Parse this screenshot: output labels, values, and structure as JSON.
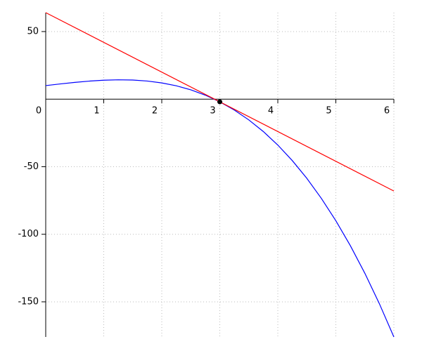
{
  "chart_data": {
    "type": "line",
    "xlim": [
      0,
      6
    ],
    "ylim": [
      -176,
      64
    ],
    "xticks": [
      0,
      1,
      2,
      3,
      4,
      5,
      6
    ],
    "yticks": [
      -150,
      -100,
      -50,
      50
    ],
    "grid": true,
    "series": [
      {
        "color": "#0000ff",
        "x": [
          0,
          0.25,
          0.5,
          0.75,
          1,
          1.25,
          1.5,
          1.75,
          2,
          2.25,
          2.5,
          2.75,
          3,
          3.25,
          3.5,
          3.75,
          4,
          4.25,
          4.5,
          4.75,
          5,
          5.25,
          5.5,
          5.75,
          6
        ],
        "values": [
          10,
          11.234375,
          12.375,
          13.328125,
          14,
          14.296875,
          14.125,
          13.390625,
          12,
          9.859375,
          6.875,
          2.953125,
          -2,
          -8.078125,
          -15.375,
          -23.984375,
          -34,
          -45.515625,
          -58.625,
          -73.421875,
          -90,
          -108.453125,
          -128.875,
          -151.359375,
          -176
        ]
      },
      {
        "color": "#ff0000",
        "x": [
          0,
          6
        ],
        "values": [
          64,
          -68
        ]
      },
      {
        "color": "#000000",
        "marker": true,
        "x": [
          3
        ],
        "values": [
          -2
        ]
      }
    ]
  }
}
